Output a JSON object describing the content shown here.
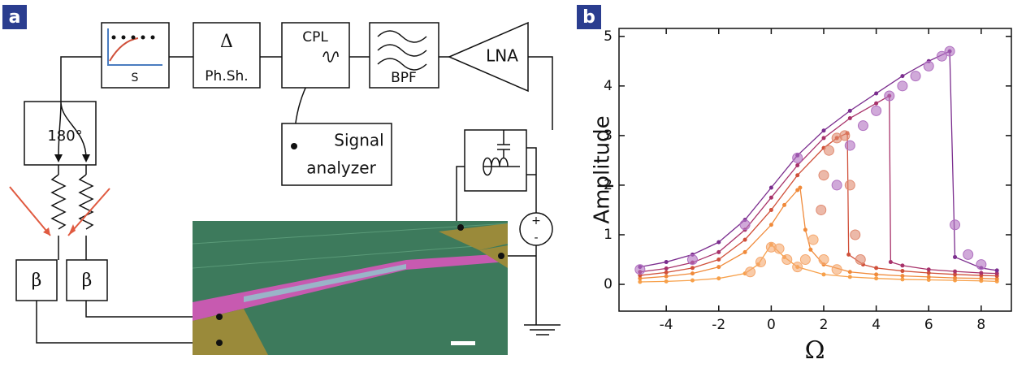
{
  "panel_a": {
    "label": "a",
    "blocks": {
      "sweep": "S",
      "phase_symbol": "Δ",
      "phase": "Ph.Sh.",
      "coupler": "CPL",
      "filter": "BPF",
      "amplifier": "LNA",
      "splitter": "180°",
      "analyzer_1": "Signal",
      "analyzer_2": "analyzer",
      "beta_left": "β",
      "beta_right": "β",
      "bias_plus": "+",
      "bias_minus": "-"
    }
  },
  "chart_data": {
    "type": "line",
    "label": "b",
    "x_label": "Ω",
    "y_label": "Amplitude",
    "xlim": [
      -5.8,
      9.15
    ],
    "ylim": [
      -0.54,
      5.16
    ],
    "xticks": [
      -4,
      -2,
      0,
      2,
      4,
      6,
      8
    ],
    "yticks": [
      0,
      1,
      2,
      3,
      4,
      5
    ],
    "series": [
      {
        "color": "#f7a04a",
        "marker": "dot",
        "x": [
          -5,
          -4,
          -3,
          -2,
          -1,
          -0.5,
          0,
          0.5,
          1,
          2,
          3,
          4,
          5,
          6,
          7,
          8,
          8.6
        ],
        "values": [
          0.05,
          0.06,
          0.08,
          0.12,
          0.22,
          0.4,
          0.8,
          0.55,
          0.35,
          0.2,
          0.15,
          0.12,
          0.1,
          0.09,
          0.08,
          0.07,
          0.06
        ]
      },
      {
        "color": "#f08a3a",
        "marker": "dot",
        "x": [
          -5,
          -4,
          -3,
          -2,
          -1,
          0,
          0.5,
          1,
          1.1,
          1.3,
          1.5,
          2,
          3,
          4,
          5,
          6,
          7,
          8,
          8.6
        ],
        "values": [
          0.12,
          0.16,
          0.22,
          0.35,
          0.65,
          1.2,
          1.6,
          1.9,
          1.95,
          1.1,
          0.7,
          0.4,
          0.25,
          0.2,
          0.17,
          0.15,
          0.13,
          0.12,
          0.11
        ]
      },
      {
        "color": "#d0503a",
        "marker": "dot",
        "x": [
          -5,
          -4,
          -3,
          -2,
          -1,
          0,
          1,
          2,
          2.5,
          2.9,
          2.95,
          3.5,
          4,
          5,
          6,
          7,
          8,
          8.6
        ],
        "values": [
          0.18,
          0.24,
          0.33,
          0.5,
          0.9,
          1.5,
          2.2,
          2.75,
          2.95,
          3.05,
          0.6,
          0.4,
          0.33,
          0.27,
          0.23,
          0.2,
          0.18,
          0.17
        ]
      },
      {
        "color": "#a8326a",
        "marker": "dot",
        "x": [
          -5,
          -4,
          -3,
          -2,
          -1,
          0,
          1,
          2,
          3,
          4,
          4.5,
          4.55,
          5,
          6,
          7,
          8,
          8.6
        ],
        "values": [
          0.25,
          0.32,
          0.44,
          0.65,
          1.1,
          1.75,
          2.4,
          2.95,
          3.35,
          3.65,
          3.8,
          0.45,
          0.38,
          0.3,
          0.26,
          0.23,
          0.22
        ]
      },
      {
        "color": "#7b2d8e",
        "marker": "dot",
        "x": [
          -5,
          -4,
          -3,
          -2,
          -1,
          0,
          1,
          2,
          3,
          4,
          5,
          6,
          6.8,
          7,
          8,
          8.6
        ],
        "values": [
          0.35,
          0.45,
          0.6,
          0.85,
          1.3,
          1.95,
          2.6,
          3.1,
          3.5,
          3.85,
          4.2,
          4.5,
          4.7,
          0.55,
          0.33,
          0.28
        ]
      },
      {
        "color": "#f5a86e",
        "marker": "circle",
        "x": [
          -0.8,
          -0.4,
          0,
          0.3,
          0.6,
          1,
          1.3,
          1.6,
          2.0,
          2.5
        ],
        "values": [
          0.25,
          0.45,
          0.75,
          0.72,
          0.5,
          0.35,
          0.5,
          0.9,
          0.5,
          0.3
        ]
      },
      {
        "color": "#e08a70",
        "marker": "circle",
        "x": [
          1.9,
          2.0,
          2.2,
          2.5,
          2.8,
          3.0,
          3.2,
          3.4
        ],
        "values": [
          1.5,
          2.2,
          2.7,
          2.95,
          3.0,
          2.0,
          1.0,
          0.5
        ]
      },
      {
        "color": "#b070c0",
        "marker": "circle",
        "x": [
          -5,
          -3,
          -1,
          1,
          2.5,
          3,
          3.5,
          4,
          4.5,
          5,
          5.5,
          6,
          6.5,
          6.8,
          7,
          7.5,
          8
        ],
        "values": [
          0.3,
          0.5,
          1.2,
          2.55,
          2.0,
          2.8,
          3.2,
          3.5,
          3.8,
          4.0,
          4.2,
          4.4,
          4.6,
          4.7,
          1.2,
          0.6,
          0.4
        ]
      }
    ]
  }
}
